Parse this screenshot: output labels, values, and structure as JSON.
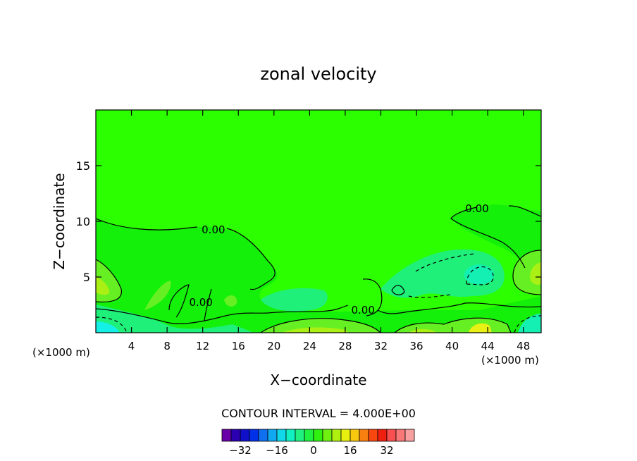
{
  "chart_data": {
    "type": "heatmap",
    "title": "zonal velocity",
    "xlabel": "X−coordinate",
    "ylabel": "Z−coordinate",
    "x_unit_left": "(×1000 m)",
    "x_unit_right": "(×1000 m)",
    "xlim": [
      0,
      50
    ],
    "ylim": [
      0,
      20
    ],
    "x_ticks": [
      4,
      8,
      12,
      16,
      20,
      24,
      28,
      32,
      36,
      40,
      44,
      48
    ],
    "y_ticks": [
      5,
      10,
      15
    ],
    "contour_interval_text": "CONTOUR INTERVAL = 4.000E+00",
    "contour_labels": [
      {
        "text": "0.00",
        "x": 13.2,
        "z": 9.3
      },
      {
        "text": "0.00",
        "x": 42.8,
        "z": 11.2
      },
      {
        "text": "0.00",
        "x": 11.8,
        "z": 2.8
      },
      {
        "text": "0.00",
        "x": 30.0,
        "z": 2.1
      }
    ],
    "colorbar": {
      "colors": [
        "#6a00a8",
        "#2a00b0",
        "#1010c8",
        "#0030e8",
        "#1070f0",
        "#10a8f0",
        "#10d8e8",
        "#10f0c0",
        "#20f080",
        "#20f040",
        "#30f010",
        "#70f010",
        "#b0f010",
        "#e8f010",
        "#f8c810",
        "#f88010",
        "#f84810",
        "#f02010",
        "#f85050",
        "#f87878",
        "#f8a0a0"
      ],
      "labels": [
        "−32",
        "−16",
        "0",
        "16",
        "32"
      ],
      "label_values": [
        -32,
        -16,
        0,
        16,
        32
      ],
      "min": -40,
      "max": 44
    },
    "field_colors": {
      "background": "#2cff00",
      "positive_light": "#14f00a",
      "positive_mid": "#66f023",
      "positive_high": "#aaf014",
      "positive_peak": "#e8f014",
      "negative_light": "#1ef07a",
      "negative_mid": "#14f0b4",
      "negative_strong": "#14f0e6"
    }
  }
}
